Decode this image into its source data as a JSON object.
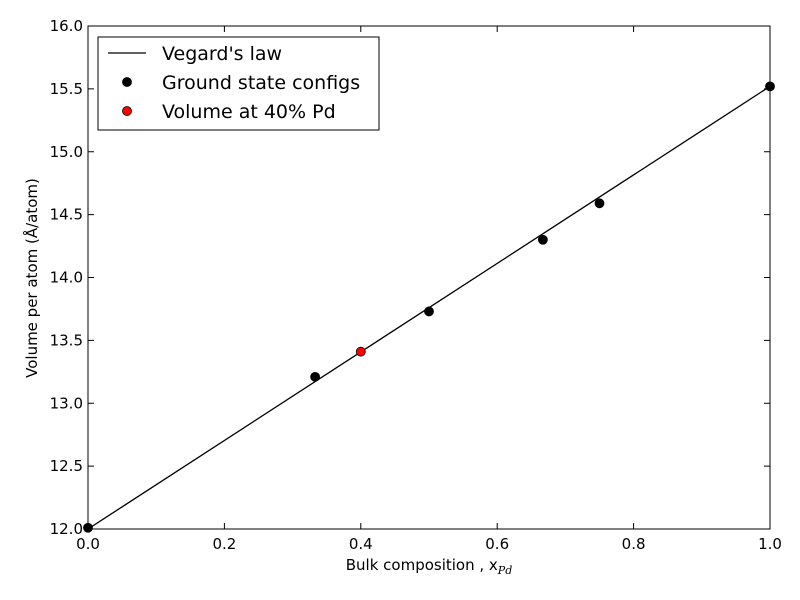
{
  "chart_data": {
    "type": "line",
    "xlabel": "Bulk composition , x",
    "xlabel_subscript": "Pd",
    "ylabel": "Volume per atom (Å/atom)",
    "xlim": [
      0.0,
      1.0
    ],
    "ylim": [
      12.0,
      16.0
    ],
    "x_ticks": [
      0.0,
      0.2,
      0.4,
      0.6,
      0.8,
      1.0
    ],
    "x_tick_labels": [
      "0.0",
      "0.2",
      "0.4",
      "0.6",
      "0.8",
      "1.0"
    ],
    "y_ticks": [
      12.0,
      12.5,
      13.0,
      13.5,
      14.0,
      14.5,
      15.0,
      15.5,
      16.0
    ],
    "y_tick_labels": [
      "12.0",
      "12.5",
      "13.0",
      "13.5",
      "14.0",
      "14.5",
      "15.0",
      "15.5",
      "16.0"
    ],
    "grid": false,
    "legend_position": "top-left",
    "series": [
      {
        "name": "Vegard's law",
        "kind": "line",
        "color": "#000000",
        "x": [
          0.0,
          1.0
        ],
        "y": [
          12.0,
          15.52
        ]
      },
      {
        "name": "Ground state configs",
        "kind": "scatter",
        "color": "#000000",
        "x": [
          0.0,
          0.333,
          0.5,
          0.667,
          0.75,
          1.0
        ],
        "y": [
          12.01,
          13.21,
          13.73,
          14.3,
          14.59,
          15.52
        ]
      },
      {
        "name": "Volume at 40% Pd",
        "kind": "scatter",
        "color": "#ff0000",
        "x": [
          0.4
        ],
        "y": [
          13.41
        ]
      }
    ]
  }
}
